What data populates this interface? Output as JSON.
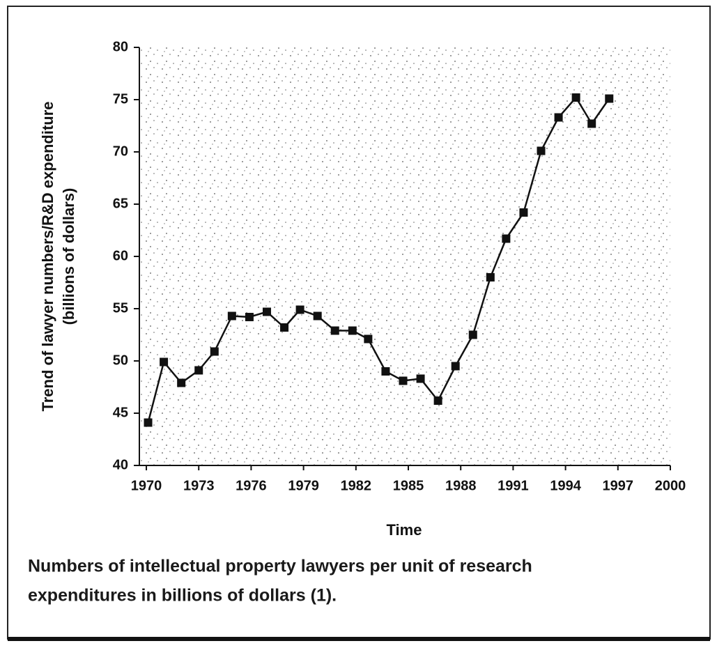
{
  "chart_data": {
    "type": "line",
    "xlabel": "Time",
    "ylabel": [
      "Trend of lawyer numbers/R&D expenditure",
      "(billions of dollars)"
    ],
    "caption": [
      "Numbers of intellectual property lawyers per unit of research",
      "expenditures in billions of dollars (1)."
    ],
    "x": [
      1970.1,
      1971.0,
      1972.0,
      1973.0,
      1973.9,
      1974.9,
      1975.9,
      1976.9,
      1977.9,
      1978.8,
      1979.8,
      1980.8,
      1981.8,
      1982.7,
      1983.7,
      1984.7,
      1985.7,
      1986.7,
      1987.7,
      1988.7,
      1989.7,
      1990.6,
      1991.6,
      1992.6,
      1993.6,
      1994.6,
      1995.5,
      1996.5
    ],
    "values": [
      44.1,
      49.9,
      47.9,
      49.1,
      50.9,
      54.3,
      54.2,
      54.7,
      53.2,
      54.9,
      54.3,
      52.9,
      52.9,
      52.1,
      49.0,
      48.1,
      48.3,
      46.2,
      49.5,
      52.5,
      58.0,
      61.7,
      64.2,
      70.1,
      73.3,
      75.2,
      72.7,
      75.1
    ],
    "color": "#111111",
    "xlim": [
      1969.6,
      2000
    ],
    "xticks": [
      1970,
      1973,
      1976,
      1979,
      1982,
      1985,
      1988,
      1991,
      1994,
      1997,
      2000
    ],
    "ylim": [
      40,
      80
    ],
    "yticks": [
      40,
      45,
      50,
      55,
      60,
      65,
      70,
      75,
      80
    ]
  }
}
